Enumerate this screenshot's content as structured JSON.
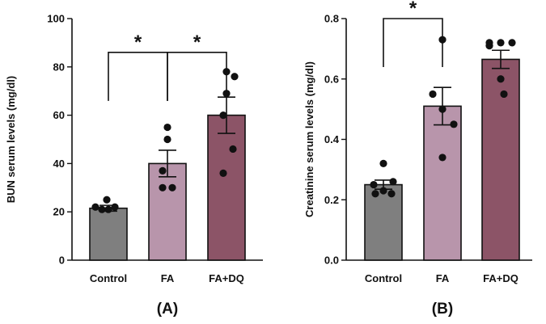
{
  "chart_data": [
    {
      "type": "bar",
      "panel_label": "(A)",
      "title": "",
      "xlabel": "",
      "ylabel": "BUN serum levels (mg/dl)",
      "ylim": [
        0,
        100
      ],
      "yticks": [
        0,
        20,
        40,
        60,
        80,
        100
      ],
      "ytick_labels": [
        "0",
        "20",
        "40",
        "60",
        "80",
        "100"
      ],
      "categories": [
        "Control",
        "FA",
        "FA+DQ"
      ],
      "values": [
        21.5,
        40,
        60
      ],
      "sem": [
        1.2,
        5.5,
        7.5
      ],
      "colors": [
        "#7f7f7f",
        "#b895ab",
        "#8c5467"
      ],
      "points": [
        [
          22,
          21,
          21,
          22,
          25
        ],
        [
          55,
          50,
          37,
          30,
          30
        ],
        [
          78,
          76,
          69,
          60,
          46,
          36
        ]
      ],
      "significance": [
        {
          "from": 0,
          "to": 1,
          "label": "*",
          "bracket_y": 86
        },
        {
          "from": 1,
          "to": 2,
          "label": "*",
          "bracket_y": 86
        }
      ]
    },
    {
      "type": "bar",
      "panel_label": "(B)",
      "title": "",
      "xlabel": "",
      "ylabel": "Creatinine serum levels (mg/dl)",
      "ylim": [
        0,
        0.8
      ],
      "yticks": [
        0,
        0.2,
        0.4,
        0.6,
        0.8
      ],
      "ytick_labels": [
        "0.0",
        "0.2",
        "0.4",
        "0.6",
        "0.8"
      ],
      "categories": [
        "Control",
        "FA",
        "FA+DQ"
      ],
      "values": [
        0.25,
        0.51,
        0.665
      ],
      "sem": [
        0.015,
        0.062,
        0.03
      ],
      "colors": [
        "#7f7f7f",
        "#b895ab",
        "#8c5467"
      ],
      "points": [
        [
          0.32,
          0.26,
          0.25,
          0.23,
          0.22,
          0.22
        ],
        [
          0.73,
          0.55,
          0.5,
          0.45,
          0.34
        ],
        [
          0.72,
          0.72,
          0.72,
          0.71,
          0.6,
          0.55
        ]
      ],
      "significance": [
        {
          "from": 0,
          "to": 1,
          "label": "*",
          "bracket_y": 0.8
        }
      ]
    }
  ]
}
